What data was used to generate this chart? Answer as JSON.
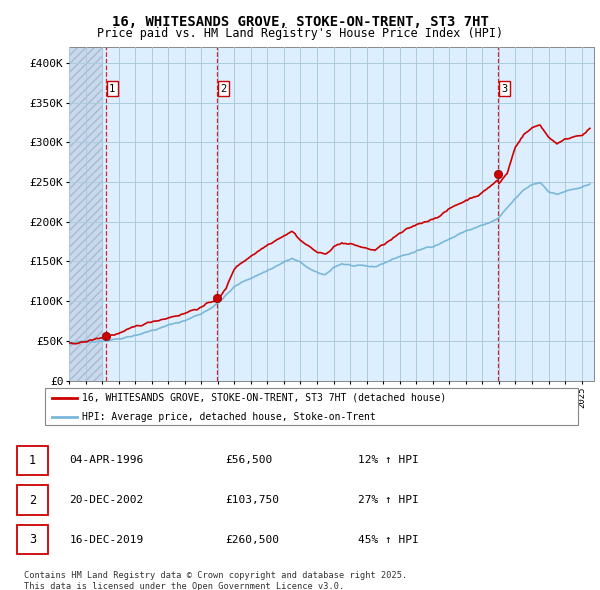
{
  "title": "16, WHITESANDS GROVE, STOKE-ON-TRENT, ST3 7HT",
  "subtitle": "Price paid vs. HM Land Registry's House Price Index (HPI)",
  "ylim": [
    0,
    420000
  ],
  "yticks": [
    0,
    50000,
    100000,
    150000,
    200000,
    250000,
    300000,
    350000,
    400000
  ],
  "ytick_labels": [
    "£0",
    "£50K",
    "£100K",
    "£150K",
    "£200K",
    "£250K",
    "£300K",
    "£350K",
    "£400K"
  ],
  "xlim_start": 1994.0,
  "xlim_end": 2025.75,
  "sale_dates": [
    1996.25,
    2002.97,
    2019.96
  ],
  "sale_prices": [
    56500,
    103750,
    260500
  ],
  "sale_labels": [
    "1",
    "2",
    "3"
  ],
  "hpi_line_color": "#7ab8d9",
  "price_line_color": "#cc0000",
  "dashed_line_color": "#cc0000",
  "marker_color": "#cc0000",
  "chart_bg_color": "#ddeeff",
  "hatch_bg_color": "#c8d8ee",
  "grid_color": "#aaccdd",
  "legend_line1": "16, WHITESANDS GROVE, STOKE-ON-TRENT, ST3 7HT (detached house)",
  "legend_line2": "HPI: Average price, detached house, Stoke-on-Trent",
  "table_entries": [
    {
      "num": "1",
      "date": "04-APR-1996",
      "price": "£56,500",
      "hpi": "12% ↑ HPI"
    },
    {
      "num": "2",
      "date": "20-DEC-2002",
      "price": "£103,750",
      "hpi": "27% ↑ HPI"
    },
    {
      "num": "3",
      "date": "16-DEC-2019",
      "price": "£260,500",
      "hpi": "45% ↑ HPI"
    }
  ],
  "footer": "Contains HM Land Registry data © Crown copyright and database right 2025.\nThis data is licensed under the Open Government Licence v3.0."
}
